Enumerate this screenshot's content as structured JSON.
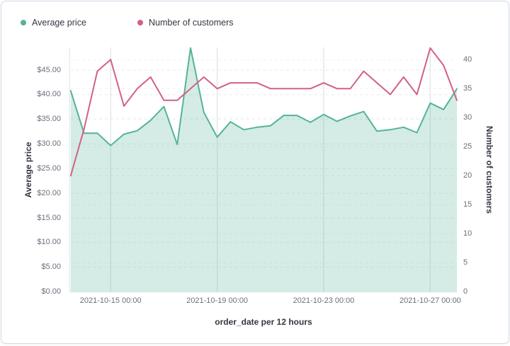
{
  "legend": {
    "items": [
      {
        "label": "Average price",
        "color": "#54b399"
      },
      {
        "label": "Number of customers",
        "color": "#d36086"
      }
    ]
  },
  "chart_data": {
    "type": "area",
    "title": "",
    "legend_position": "top",
    "grid": true,
    "x": [
      "2021-10-13 12:00",
      "2021-10-14 00:00",
      "2021-10-14 12:00",
      "2021-10-15 00:00",
      "2021-10-15 12:00",
      "2021-10-16 00:00",
      "2021-10-16 12:00",
      "2021-10-17 00:00",
      "2021-10-17 12:00",
      "2021-10-18 00:00",
      "2021-10-18 12:00",
      "2021-10-19 00:00",
      "2021-10-19 12:00",
      "2021-10-20 00:00",
      "2021-10-20 12:00",
      "2021-10-21 00:00",
      "2021-10-21 12:00",
      "2021-10-22 00:00",
      "2021-10-22 12:00",
      "2021-10-23 00:00",
      "2021-10-23 12:00",
      "2021-10-24 00:00",
      "2021-10-24 12:00",
      "2021-10-25 00:00",
      "2021-10-25 12:00",
      "2021-10-26 00:00",
      "2021-10-26 12:00",
      "2021-10-27 00:00",
      "2021-10-27 12:00",
      "2021-10-28 00:00"
    ],
    "series": [
      {
        "name": "Average price",
        "type": "area",
        "axis": "left",
        "color": "#54b399",
        "fill_opacity": 0.25,
        "values": [
          40.8,
          32.2,
          32.2,
          29.7,
          32.0,
          32.7,
          34.8,
          37.6,
          29.9,
          49.5,
          36.4,
          31.4,
          34.5,
          32.9,
          33.4,
          33.7,
          35.8,
          35.8,
          34.4,
          36.0,
          34.6,
          35.7,
          36.6,
          32.6,
          32.9,
          33.4,
          32.3,
          38.3,
          37.0,
          41.2
        ]
      },
      {
        "name": "Number of customers",
        "type": "line",
        "axis": "right",
        "color": "#d36086",
        "values": [
          20,
          28,
          38,
          40,
          32,
          35,
          37,
          33,
          33,
          35,
          37,
          35,
          36,
          36,
          36,
          35,
          35,
          35,
          35,
          36,
          35,
          35,
          38,
          36,
          34,
          37,
          34,
          42,
          39,
          33
        ]
      }
    ],
    "left_axis": {
      "title": "Average price",
      "tick_values": [
        0,
        5,
        10,
        15,
        20,
        25,
        30,
        35,
        40,
        45
      ],
      "tick_labels": [
        "$0.00",
        "$5.00",
        "$10.00",
        "$15.00",
        "$20.00",
        "$25.00",
        "$30.00",
        "$35.00",
        "$40.00",
        "$45.00"
      ],
      "range": [
        0,
        49.6
      ]
    },
    "right_axis": {
      "title": "Number of customers",
      "tick_values": [
        0,
        5,
        10,
        15,
        20,
        25,
        30,
        35,
        40
      ],
      "tick_labels": [
        "0",
        "5",
        "10",
        "15",
        "20",
        "25",
        "30",
        "35",
        "40"
      ],
      "range": [
        0,
        42.1
      ]
    },
    "x_axis": {
      "title": "order_date per 12 hours",
      "tick_indices": [
        3,
        11,
        19,
        27
      ],
      "tick_labels": [
        "2021-10-15 00:00",
        "2021-10-19 00:00",
        "2021-10-23 00:00",
        "2021-10-27 00:00"
      ]
    }
  }
}
